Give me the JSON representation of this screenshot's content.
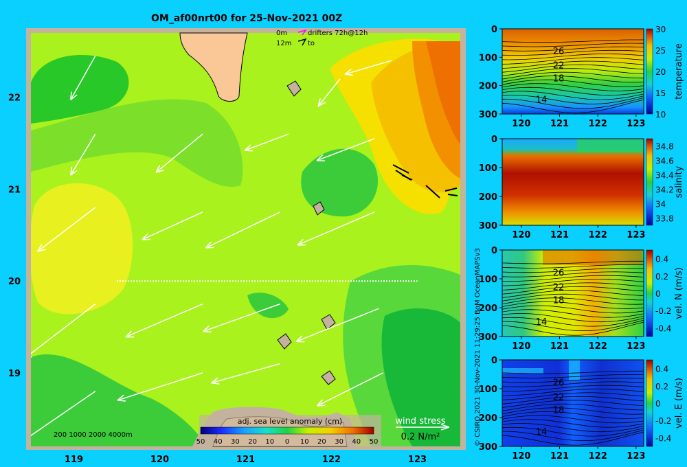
{
  "title": "OM_af00nrt00 for 25-Nov-2021 00Z",
  "colors": {
    "background": "#0ad0ff",
    "land": "#f9c896",
    "shelf": "#c3b39e",
    "vector": "#ffffff"
  },
  "map": {
    "legend_top": {
      "row1_depth": "0m",
      "row1_text": "drifters 72h@12h",
      "row2_depth": "12m",
      "row2_text": "to"
    },
    "x_ticks": [
      "119",
      "120",
      "121",
      "122",
      "123"
    ],
    "y_ticks": [
      "22",
      "21",
      "20",
      "19"
    ],
    "colorbar": {
      "label": "adj. sea level anomaly (cm)",
      "ticks": [
        "50",
        "40",
        "30",
        "20",
        "10",
        "0",
        "10",
        "20",
        "30",
        "40",
        "50"
      ]
    },
    "isobaths_label": "200  1000  2000  4000m",
    "wind_stress": {
      "label": "wind stress",
      "scale": "0.2 N/m²"
    }
  },
  "credit": "© CSIRO 2021   30-Nov-2021 11:29:25 BoM OceanMAPSv3",
  "chart_data": [
    {
      "type": "heatmap",
      "title": "OM_af00nrt00 for 25-Nov-2021 00Z",
      "variable": "adj. sea level anomaly (cm)",
      "xlim": [
        118.5,
        123.5
      ],
      "ylim": [
        18.2,
        22.7
      ],
      "colorbar_range": [
        -50,
        50
      ],
      "x_ticks": [
        119,
        120,
        121,
        122,
        123
      ],
      "y_ticks": [
        19,
        20,
        21,
        22
      ],
      "section_line": {
        "lat": 20.0,
        "lon": [
          119.5,
          123.0
        ]
      },
      "wind_stress_vectors": [
        {
          "lon": 119.25,
          "lat": 22.45,
          "u": -0.09,
          "v": -0.16
        },
        {
          "lon": 119.25,
          "lat": 21.6,
          "u": -0.09,
          "v": -0.15
        },
        {
          "lon": 119.25,
          "lat": 20.8,
          "u": -0.21,
          "v": -0.16
        },
        {
          "lon": 119.25,
          "lat": 19.75,
          "u": -0.26,
          "v": -0.2
        },
        {
          "lon": 119.25,
          "lat": 18.8,
          "u": -0.32,
          "v": -0.22
        },
        {
          "lon": 120.5,
          "lat": 21.6,
          "u": -0.17,
          "v": -0.14
        },
        {
          "lon": 120.5,
          "lat": 20.75,
          "u": -0.22,
          "v": -0.1
        },
        {
          "lon": 120.5,
          "lat": 19.75,
          "u": -0.28,
          "v": -0.12
        },
        {
          "lon": 120.5,
          "lat": 19.0,
          "u": -0.31,
          "v": -0.1
        },
        {
          "lon": 121.4,
          "lat": 20.75,
          "u": -0.27,
          "v": -0.13
        },
        {
          "lon": 121.4,
          "lat": 19.75,
          "u": -0.28,
          "v": -0.1
        },
        {
          "lon": 121.4,
          "lat": 19.1,
          "u": -0.25,
          "v": -0.07
        },
        {
          "lon": 121.5,
          "lat": 21.6,
          "u": -0.16,
          "v": -0.06
        },
        {
          "lon": 122.1,
          "lat": 22.2,
          "u": -0.08,
          "v": -0.1
        },
        {
          "lon": 122.5,
          "lat": 20.75,
          "u": -0.28,
          "v": -0.12
        },
        {
          "lon": 122.5,
          "lat": 21.55,
          "u": -0.21,
          "v": -0.08
        },
        {
          "lon": 122.55,
          "lat": 19.7,
          "u": -0.3,
          "v": -0.12
        },
        {
          "lon": 122.6,
          "lat": 19.0,
          "u": -0.24,
          "v": -0.12
        },
        {
          "lon": 122.7,
          "lat": 22.4,
          "u": -0.17,
          "v": -0.05
        }
      ]
    },
    {
      "type": "heatmap",
      "variable": "temperature",
      "xlabel": "",
      "ylabel": "",
      "x_ticks": [
        120,
        121,
        122,
        123
      ],
      "y_ticks": [
        0,
        100,
        200,
        300
      ],
      "xlim": [
        119.5,
        123.2
      ],
      "ylim": [
        300,
        0
      ],
      "colorbar_range": [
        10,
        30
      ],
      "colorbar_ticks": [
        10,
        15,
        20,
        25,
        30
      ],
      "contour_labels": [
        26,
        22,
        18,
        14
      ],
      "colorbar_label": "temperature"
    },
    {
      "type": "heatmap",
      "variable": "salinity",
      "x_ticks": [
        120,
        121,
        122,
        123
      ],
      "y_ticks": [
        0,
        100,
        200,
        300
      ],
      "xlim": [
        119.5,
        123.2
      ],
      "ylim": [
        300,
        0
      ],
      "colorbar_range": [
        33.7,
        34.9
      ],
      "colorbar_ticks": [
        33.8,
        34,
        34.2,
        34.4,
        34.6,
        34.8
      ],
      "colorbar_label": "salinity"
    },
    {
      "type": "heatmap",
      "variable": "vel. N (m/s)",
      "x_ticks": [
        120,
        121,
        122,
        123
      ],
      "y_ticks": [
        0,
        100,
        200,
        300
      ],
      "xlim": [
        119.5,
        123.2
      ],
      "ylim": [
        300,
        0
      ],
      "colorbar_range": [
        -0.5,
        0.5
      ],
      "colorbar_ticks": [
        -0.4,
        -0.2,
        0,
        0.2,
        0.4
      ],
      "contour_labels": [
        26,
        22,
        18,
        14
      ],
      "colorbar_label": "vel. N (m/s)"
    },
    {
      "type": "heatmap",
      "variable": "vel. E (m/s)",
      "x_ticks": [
        120,
        121,
        122,
        123
      ],
      "y_ticks": [
        0,
        100,
        200,
        300
      ],
      "xlim": [
        119.5,
        123.2
      ],
      "ylim": [
        300,
        0
      ],
      "colorbar_range": [
        -0.5,
        0.5
      ],
      "colorbar_ticks": [
        -0.4,
        -0.2,
        0,
        0.2,
        0.4
      ],
      "contour_labels": [
        26,
        22,
        18,
        14
      ],
      "colorbar_label": "vel. E (m/s)"
    }
  ]
}
